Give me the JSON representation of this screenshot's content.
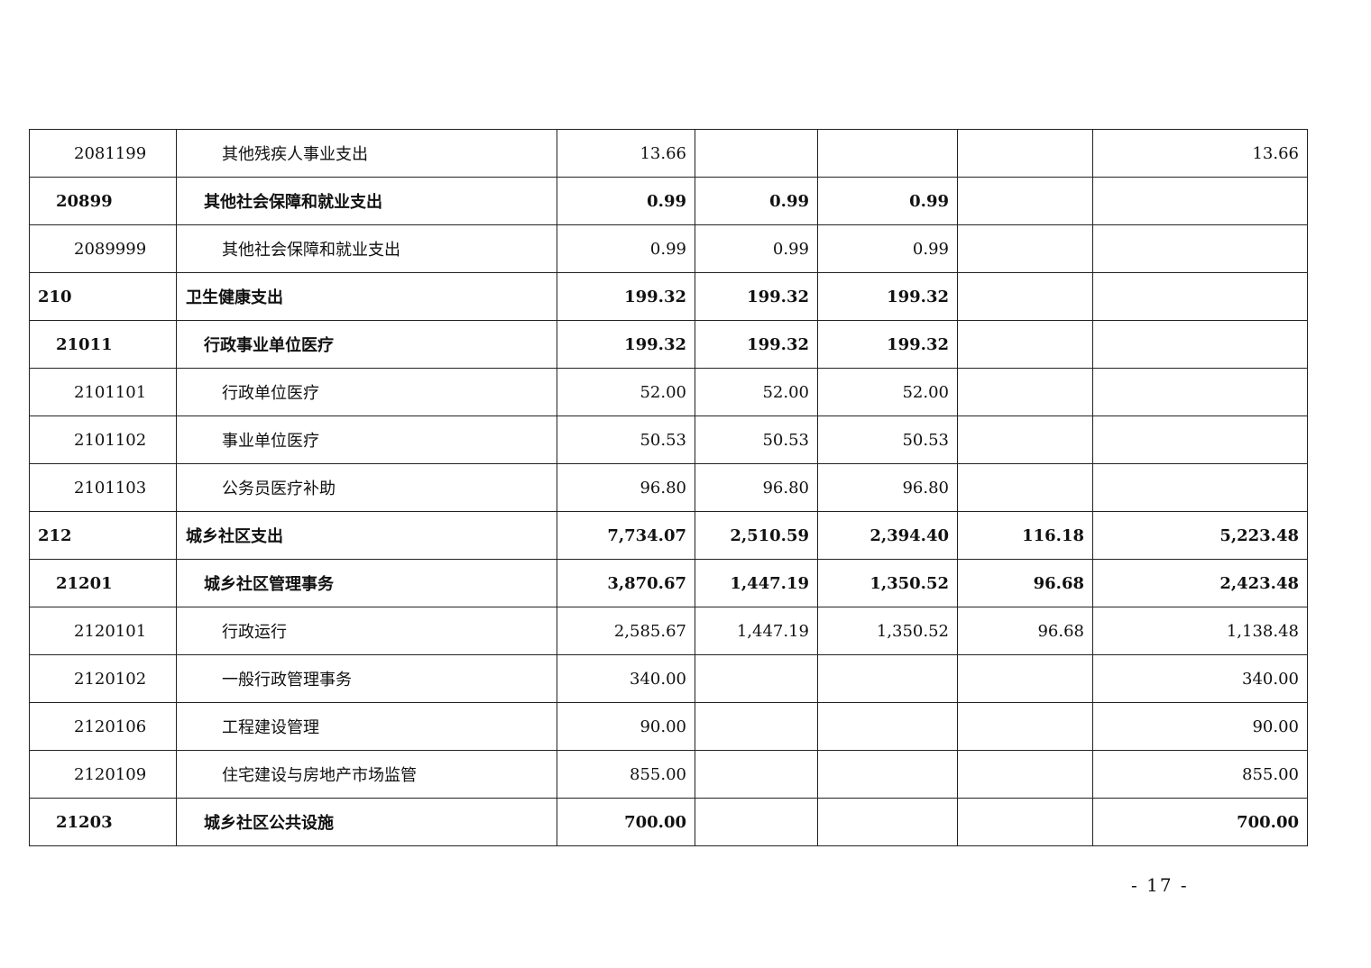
{
  "rows": [
    {
      "code": "2081199",
      "name": "其他残疾人事业支出",
      "level": 3,
      "bold": false,
      "values": [
        "13.66",
        "",
        "",
        "",
        "13.66"
      ]
    },
    {
      "code": "20899",
      "name": "其他社会保障和就业支出",
      "level": 2,
      "bold": true,
      "values": [
        "0.99",
        "0.99",
        "0.99",
        "",
        ""
      ]
    },
    {
      "code": "2089999",
      "name": "其他社会保障和就业支出",
      "level": 3,
      "bold": false,
      "values": [
        "0.99",
        "0.99",
        "0.99",
        "",
        ""
      ]
    },
    {
      "code": "210",
      "name": "卫生健康支出",
      "level": 1,
      "bold": true,
      "values": [
        "199.32",
        "199.32",
        "199.32",
        "",
        ""
      ]
    },
    {
      "code": "21011",
      "name": "行政事业单位医疗",
      "level": 2,
      "bold": true,
      "values": [
        "199.32",
        "199.32",
        "199.32",
        "",
        ""
      ]
    },
    {
      "code": "2101101",
      "name": "行政单位医疗",
      "level": 3,
      "bold": false,
      "values": [
        "52.00",
        "52.00",
        "52.00",
        "",
        ""
      ]
    },
    {
      "code": "2101102",
      "name": "事业单位医疗",
      "level": 3,
      "bold": false,
      "values": [
        "50.53",
        "50.53",
        "50.53",
        "",
        ""
      ]
    },
    {
      "code": "2101103",
      "name": "公务员医疗补助",
      "level": 3,
      "bold": false,
      "values": [
        "96.80",
        "96.80",
        "96.80",
        "",
        ""
      ]
    },
    {
      "code": "212",
      "name": "城乡社区支出",
      "level": 1,
      "bold": true,
      "values": [
        "7,734.07",
        "2,510.59",
        "2,394.40",
        "116.18",
        "5,223.48"
      ]
    },
    {
      "code": "21201",
      "name": "城乡社区管理事务",
      "level": 2,
      "bold": true,
      "values": [
        "3,870.67",
        "1,447.19",
        "1,350.52",
        "96.68",
        "2,423.48"
      ]
    },
    {
      "code": "2120101",
      "name": "行政运行",
      "level": 3,
      "bold": false,
      "values": [
        "2,585.67",
        "1,447.19",
        "1,350.52",
        "96.68",
        "1,138.48"
      ]
    },
    {
      "code": "2120102",
      "name": "一般行政管理事务",
      "level": 3,
      "bold": false,
      "values": [
        "340.00",
        "",
        "",
        "",
        "340.00"
      ]
    },
    {
      "code": "2120106",
      "name": "工程建设管理",
      "level": 3,
      "bold": false,
      "values": [
        "90.00",
        "",
        "",
        "",
        "90.00"
      ]
    },
    {
      "code": "2120109",
      "name": "住宅建设与房地产市场监管",
      "level": 3,
      "bold": false,
      "values": [
        "855.00",
        "",
        "",
        "",
        "855.00"
      ]
    },
    {
      "code": "21203",
      "name": "城乡社区公共设施",
      "level": 2,
      "bold": true,
      "values": [
        "700.00",
        "",
        "",
        "",
        "700.00"
      ]
    }
  ],
  "page_number": "- 17 -"
}
